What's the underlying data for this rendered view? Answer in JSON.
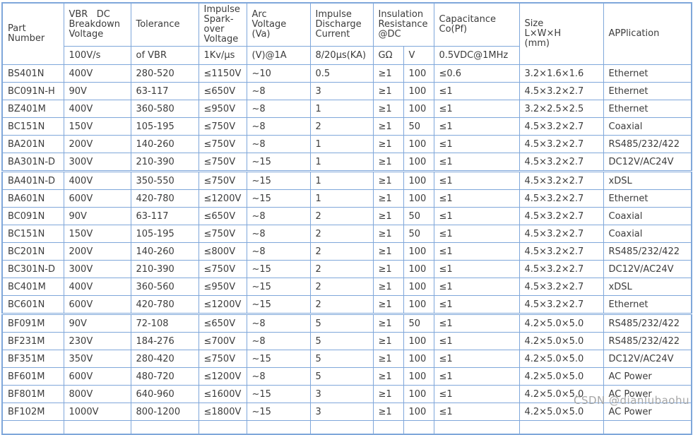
{
  "watermark": "CSDN @dianlubaohu",
  "colors": {
    "grid_border": "#7fa7da",
    "text": "#3c3c3c",
    "watermark_gray": "#a6a6a6",
    "background": "#ffffff"
  },
  "table": {
    "header": {
      "part": "Part\nNumber",
      "vbr": "VBR   DC\nBreakdown\nVoltage",
      "vbr_sub": "100V/s",
      "tolerance": "Tolerance",
      "tolerance_sub": "of VBR",
      "spark": "Impulse\nSpark-\nover\nVoltage",
      "spark_sub": "1Kv/µs",
      "arc": "Arc\nVoltage\n(Va)",
      "arc_sub": "(V)@1A",
      "discharge": "Impulse\nDischarge\nCurrent",
      "discharge_sub": "8/20µs(KA)",
      "insulation": "Insulation\nResistance\n@DC",
      "insulation_sub_g": "GΩ",
      "insulation_sub_v": "V",
      "capacitance": "Capacitance\nCo(Pf)",
      "capacitance_sub": "0.5VDC@1MHz",
      "size": "Size\nL×W×H\n(mm)",
      "application": "APPlication"
    },
    "rows": [
      {
        "part": "BS401N",
        "vbr": "400V",
        "tol": "280-520",
        "spark": "≤1150V",
        "arc": "~10",
        "dis": "0.5",
        "ig": "≥1",
        "iv": "100",
        "cap": "≤0.6",
        "size": "3.2×1.6×1.6",
        "app": "Ethernet"
      },
      {
        "part": "BC091N-H",
        "vbr": "90V",
        "tol": "63-117",
        "spark": "≤650V",
        "arc": "~8",
        "dis": "3",
        "ig": "≥1",
        "iv": "100",
        "cap": "≤1",
        "size": "4.5×3.2×2.7",
        "app": "Ethernet"
      },
      {
        "part": "BZ401M",
        "vbr": "400V",
        "tol": "360-580",
        "spark": "≤950V",
        "arc": "~8",
        "dis": "1",
        "ig": "≥1",
        "iv": "100",
        "cap": "≤1",
        "size": "3.2×2.5×2.5",
        "app": "Ethernet"
      },
      {
        "part": "BC151N",
        "vbr": "150V",
        "tol": "105-195",
        "spark": "≤750V",
        "arc": "~8",
        "dis": "2",
        "ig": "≥1",
        "iv": "50",
        "cap": "≤1",
        "size": "4.5×3.2×2.7",
        "app": "Coaxial"
      },
      {
        "part": "BA201N",
        "vbr": "200V",
        "tol": "140-260",
        "spark": "≤750V",
        "arc": "~8",
        "dis": "1",
        "ig": "≥1",
        "iv": "100",
        "cap": "≤1",
        "size": "4.5×3.2×2.7",
        "app": "RS485/232/422"
      },
      {
        "part": "BA301N-D",
        "vbr": "300V",
        "tol": "210-390",
        "spark": "≤750V",
        "arc": "~15",
        "dis": "1",
        "ig": "≥1",
        "iv": "100",
        "cap": "≤1",
        "size": "4.5×3.2×2.7",
        "app": "DC12V/AC24V"
      },
      {
        "part": "BA401N-D",
        "vbr": "400V",
        "tol": "350-550",
        "spark": "≤750V",
        "arc": "~15",
        "dis": "1",
        "ig": "≥1",
        "iv": "100",
        "cap": "≤1",
        "size": "4.5×3.2×2.7",
        "app": "xDSL",
        "group_start": true
      },
      {
        "part": "BA601N",
        "vbr": "600V",
        "tol": "420-780",
        "spark": "≤1200V",
        "arc": "~15",
        "dis": "1",
        "ig": "≥1",
        "iv": "100",
        "cap": "≤1",
        "size": "4.5×3.2×2.7",
        "app": "Ethernet"
      },
      {
        "part": "BC091N",
        "vbr": "90V",
        "tol": "63-117",
        "spark": "≤650V",
        "arc": "~8",
        "dis": "2",
        "ig": "≥1",
        "iv": "50",
        "cap": "≤1",
        "size": "4.5×3.2×2.7",
        "app": "Coaxial"
      },
      {
        "part": "BC151N",
        "vbr": "150V",
        "tol": "105-195",
        "spark": "≤750V",
        "arc": "~8",
        "dis": "2",
        "ig": "≥1",
        "iv": "50",
        "cap": "≤1",
        "size": "4.5×3.2×2.7",
        "app": "Coaxial"
      },
      {
        "part": "BC201N",
        "vbr": "200V",
        "tol": "140-260",
        "spark": "≤800V",
        "arc": "~8",
        "dis": "2",
        "ig": "≥1",
        "iv": "100",
        "cap": "≤1",
        "size": "4.5×3.2×2.7",
        "app": "RS485/232/422"
      },
      {
        "part": "BC301N-D",
        "vbr": "300V",
        "tol": "210-390",
        "spark": "≤750V",
        "arc": "~15",
        "dis": "2",
        "ig": "≥1",
        "iv": "100",
        "cap": "≤1",
        "size": "4.5×3.2×2.7",
        "app": "DC12V/AC24V"
      },
      {
        "part": "BC401M",
        "vbr": "400V",
        "tol": "360-560",
        "spark": "≤950V",
        "arc": "~15",
        "dis": "2",
        "ig": "≥1",
        "iv": "100",
        "cap": "≤1",
        "size": "4.5×3.2×2.7",
        "app": "xDSL"
      },
      {
        "part": "BC601N",
        "vbr": "600V",
        "tol": "420-780",
        "spark": "≤1200V",
        "arc": "~15",
        "dis": "2",
        "ig": "≥1",
        "iv": "100",
        "cap": "≤1",
        "size": "4.5×3.2×2.7",
        "app": "Ethernet"
      },
      {
        "part": "BF091M",
        "vbr": "90V",
        "tol": "72-108",
        "spark": "≤650V",
        "arc": "~8",
        "dis": "5",
        "ig": "≥1",
        "iv": "50",
        "cap": "≤1",
        "size": "4.2×5.0×5.0",
        "app": "RS485/232/422",
        "group_start": true
      },
      {
        "part": "BF231M",
        "vbr": "230V",
        "tol": "184-276",
        "spark": "≤700V",
        "arc": "~8",
        "dis": "5",
        "ig": "≥1",
        "iv": "100",
        "cap": "≤1",
        "size": "4.2×5.0×5.0",
        "app": "RS485/232/422"
      },
      {
        "part": "BF351M",
        "vbr": "350V",
        "tol": "280-420",
        "spark": "≤750V",
        "arc": "~15",
        "dis": "5",
        "ig": "≥1",
        "iv": "100",
        "cap": "≤1",
        "size": "4.2×5.0×5.0",
        "app": "DC12V/AC24V"
      },
      {
        "part": "BF601M",
        "vbr": "600V",
        "tol": "480-720",
        "spark": "≤1200V",
        "arc": "~8",
        "dis": "5",
        "ig": "≥1",
        "iv": "100",
        "cap": "≤1",
        "size": "4.2×5.0×5.0",
        "app": "AC Power"
      },
      {
        "part": "BF801M",
        "vbr": "800V",
        "tol": "640-960",
        "spark": "≤1600V",
        "arc": "~15",
        "dis": "3",
        "ig": "≥1",
        "iv": "100",
        "cap": "≤1",
        "size": "4.2×5.0×5.0",
        "app": "AC Power"
      },
      {
        "part": "BF102M",
        "vbr": "1000V",
        "tol": "800-1200",
        "spark": "≤1800V",
        "arc": "~15",
        "dis": "3",
        "ig": "≥1",
        "iv": "100",
        "cap": "≤1",
        "size": "4.2×5.0×5.0",
        "app": "AC Power"
      }
    ]
  }
}
